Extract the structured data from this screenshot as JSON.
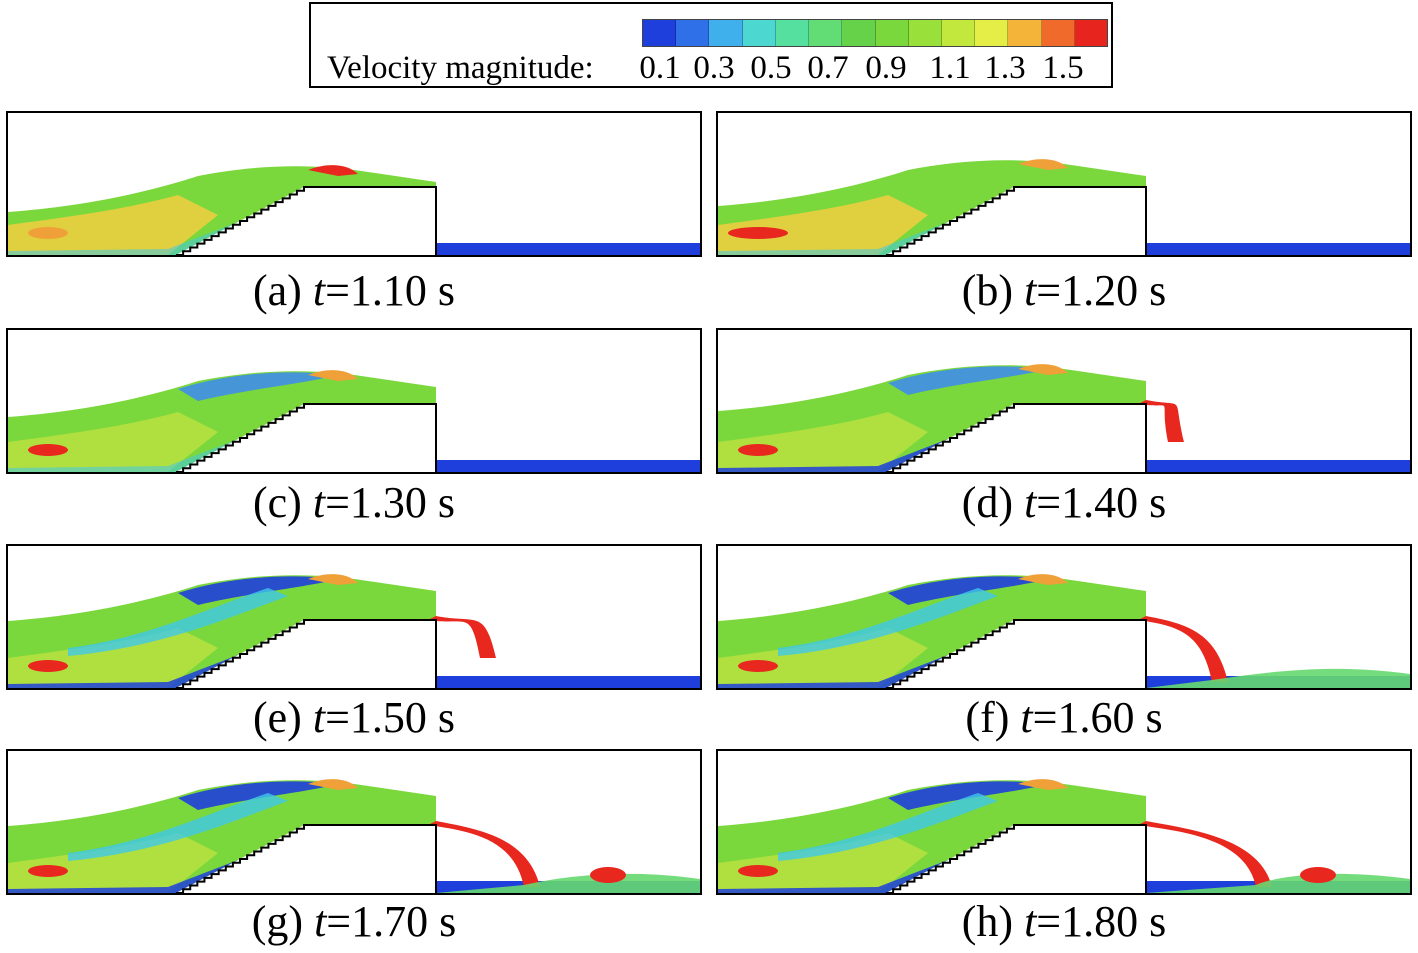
{
  "legend": {
    "title": "Velocity magnitude:",
    "tick_labels": [
      "0.1",
      "0.3",
      "0.5",
      "0.7",
      "0.9",
      "1.1",
      "1.3",
      "1.5"
    ],
    "colors": [
      "#1f3fdc",
      "#2f6fe8",
      "#3fb0ec",
      "#4cd8d0",
      "#56e0a0",
      "#62dc74",
      "#66d24a",
      "#7ad83c",
      "#9ae03a",
      "#c2e83e",
      "#e4ee46",
      "#f4b43a",
      "#f06a2c",
      "#e8241e"
    ]
  },
  "panels": [
    {
      "id": "a",
      "letter": "(a)",
      "variable": "t",
      "time": "=1.10 s",
      "stage": 1
    },
    {
      "id": "b",
      "letter": "(b)",
      "variable": "t",
      "time": "=1.20 s",
      "stage": 2
    },
    {
      "id": "c",
      "letter": "(c)",
      "variable": "t",
      "time": "=1.30 s",
      "stage": 3
    },
    {
      "id": "d",
      "letter": "(d)",
      "variable": "t",
      "time": "=1.40 s",
      "stage": 4
    },
    {
      "id": "e",
      "letter": "(e)",
      "variable": "t",
      "time": "=1.50 s",
      "stage": 5
    },
    {
      "id": "f",
      "letter": "(f)",
      "variable": "t",
      "time": "=1.60 s",
      "stage": 6
    },
    {
      "id": "g",
      "letter": "(g)",
      "variable": "t",
      "time": "=1.70 s",
      "stage": 7
    },
    {
      "id": "h",
      "letter": "(h)",
      "variable": "t",
      "time": "=1.80 s",
      "stage": 8
    }
  ]
}
